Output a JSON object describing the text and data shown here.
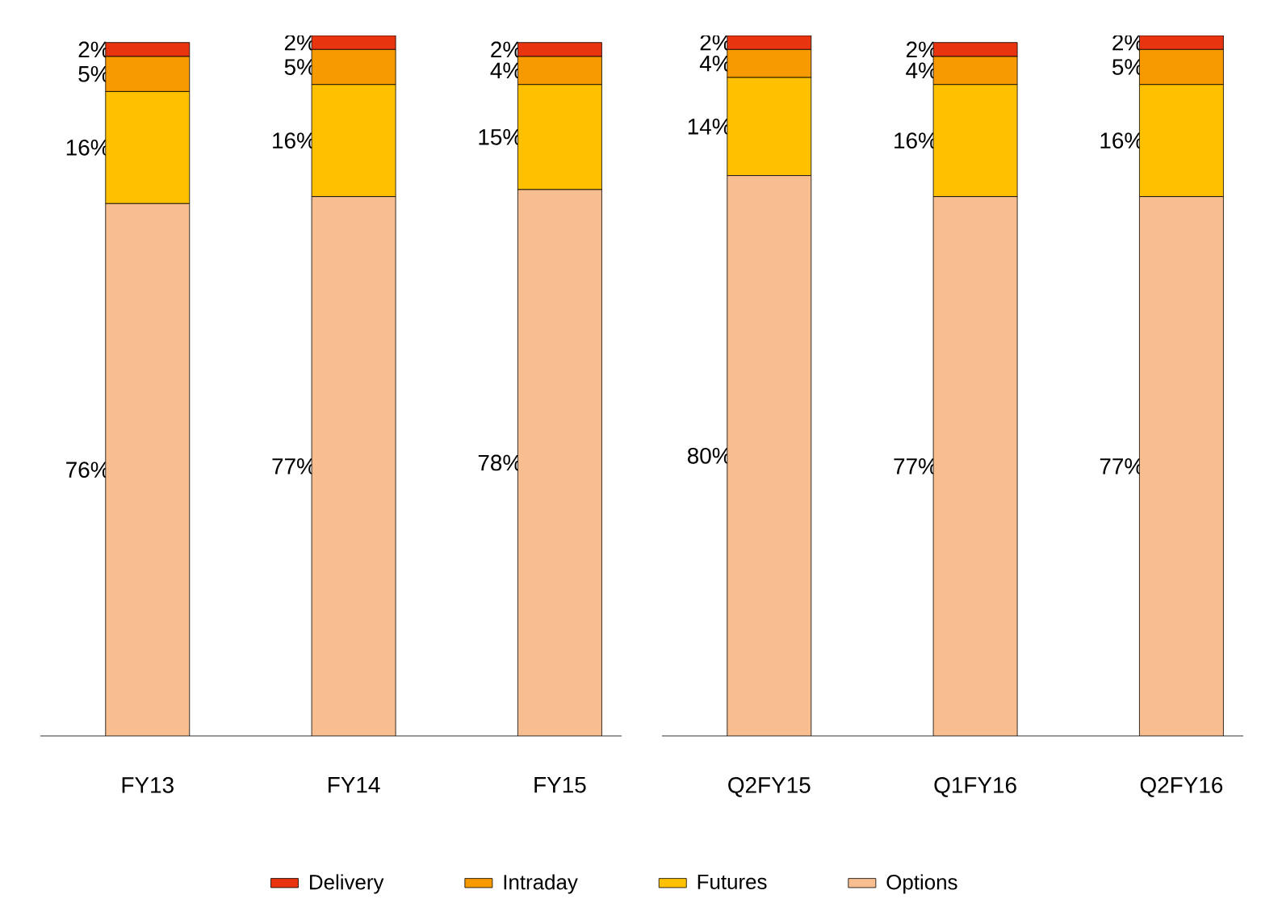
{
  "chart_data": [
    {
      "type": "bar",
      "stacked": true,
      "categories": [
        "FY13",
        "FY14",
        "FY15"
      ],
      "ylim": [
        0,
        100
      ],
      "tick_labels": "x",
      "legend": "bottom",
      "series": [
        {
          "name": "Options",
          "color": "#f9be8f",
          "values": [
            76,
            77,
            78
          ],
          "value_labels": [
            "76%",
            "77%",
            "78%"
          ]
        },
        {
          "name": "Futures",
          "color": "#ffc000",
          "values": [
            16,
            16,
            15
          ],
          "value_labels": [
            "16%",
            "16%",
            "15%"
          ]
        },
        {
          "name": "Intraday",
          "color": "#f79a00",
          "values": [
            5,
            5,
            4
          ],
          "value_labels": [
            "5%",
            "5%",
            "4%"
          ]
        },
        {
          "name": "Delivery",
          "color": "#e8340f",
          "values": [
            2,
            2,
            2
          ],
          "value_labels": [
            "2%",
            "2%",
            "2%"
          ]
        }
      ]
    },
    {
      "type": "bar",
      "stacked": true,
      "categories": [
        "Q2FY15",
        "Q1FY16",
        "Q2FY16"
      ],
      "ylim": [
        0,
        100
      ],
      "tick_labels": "x",
      "series": [
        {
          "color": "#f9be8f",
          "values": [
            80,
            77,
            77
          ],
          "value_labels": [
            "80%",
            "77%",
            "77%"
          ]
        },
        {
          "color": "#ffc000",
          "values": [
            14,
            16,
            16
          ],
          "value_labels": [
            "14%",
            "16%",
            "16%"
          ]
        },
        {
          "color": "#f79a00",
          "values": [
            4,
            4,
            5
          ],
          "value_labels": [
            "4%",
            "4%",
            "5%"
          ]
        },
        {
          "color": "#e8340f",
          "values": [
            2,
            2,
            2
          ],
          "value_labels": [
            "2%",
            "2%",
            "2%"
          ]
        }
      ]
    }
  ]
}
